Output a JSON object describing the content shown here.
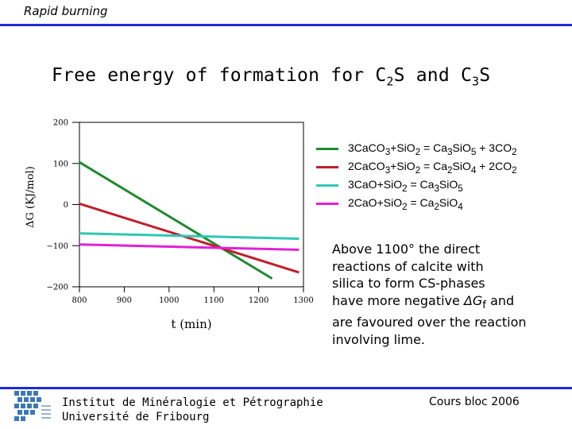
{
  "header": {
    "title": "Rapid burning"
  },
  "slide": {
    "title_main": "Free energy of formation for C",
    "title_sub1": "2",
    "title_mid": "S and C",
    "title_sub2": "3",
    "title_end": "S"
  },
  "chart_data": {
    "type": "line",
    "xlabel": "t (min)",
    "ylabel": "ΔG (KJ/mol)",
    "xlim": [
      800,
      1300
    ],
    "ylim": [
      -200,
      200
    ],
    "xticks": [
      "800",
      "900",
      "1000",
      "1100",
      "1200",
      "1300"
    ],
    "yticks": [
      "200",
      "100",
      "0",
      "−100",
      "−200"
    ],
    "series": [
      {
        "name": "3CaCO3+SiO2 = Ca3SiO5 + 3CO2",
        "color": "#1e8a2e",
        "x": [
          800,
          1230
        ],
        "y": [
          103,
          -180
        ]
      },
      {
        "name": "2CaCO3+SiO2 = Ca2SiO4 + 2CO2",
        "color": "#c0202a",
        "x": [
          800,
          1290
        ],
        "y": [
          2,
          -165
        ]
      },
      {
        "name": "3CaO+SiO2 = Ca3SiO5",
        "color": "#2ec8b4",
        "x": [
          800,
          1290
        ],
        "y": [
          -70,
          -83
        ]
      },
      {
        "name": "2CaO+SiO2 = Ca2SiO4",
        "color": "#e020d8",
        "x": [
          800,
          1290
        ],
        "y": [
          -97,
          -110
        ]
      }
    ]
  },
  "legend": [
    {
      "pre": "3CaCO",
      "s1": "3",
      "mid1": "+SiO",
      "s2": "2",
      "mid2": " = Ca",
      "s3": "3",
      "mid3": "SiO",
      "s4": "5",
      "post": " + 3CO",
      "s5": "2",
      "color": "#1e8a2e"
    },
    {
      "pre": "2CaCO",
      "s1": "3",
      "mid1": "+SiO",
      "s2": "2",
      "mid2": " = Ca",
      "s3": "2",
      "mid3": "SiO",
      "s4": "4",
      "post": " + 2CO",
      "s5": "2",
      "color": "#c0202a"
    },
    {
      "pre": "3CaO",
      "s1": "",
      "mid1": "+SiO",
      "s2": "2",
      "mid2": " = Ca",
      "s3": "3",
      "mid3": "SiO",
      "s4": "5",
      "post": "",
      "s5": "",
      "color": "#2ec8b4"
    },
    {
      "pre": "2CaO",
      "s1": "",
      "mid1": "+SiO",
      "s2": "2",
      "mid2": " = Ca",
      "s3": "2",
      "mid3": "SiO",
      "s4": "4",
      "post": "",
      "s5": "",
      "color": "#e020d8"
    }
  ],
  "note": {
    "line1": "Above 1100° the direct",
    "line2": "reactions of calcite with",
    "line3": "silica to form CS-phases",
    "line4a": "have more negative ",
    "line4b": "ΔG",
    "line4c": "f",
    "line4d": " and",
    "line5": "are favoured over the reaction",
    "line6": "involving lime."
  },
  "footer": {
    "institution_line1": "Institut de Minéralogie et Pétrographie",
    "institution_line2": "Université de Fribourg",
    "course": "Cours bloc 2006"
  }
}
